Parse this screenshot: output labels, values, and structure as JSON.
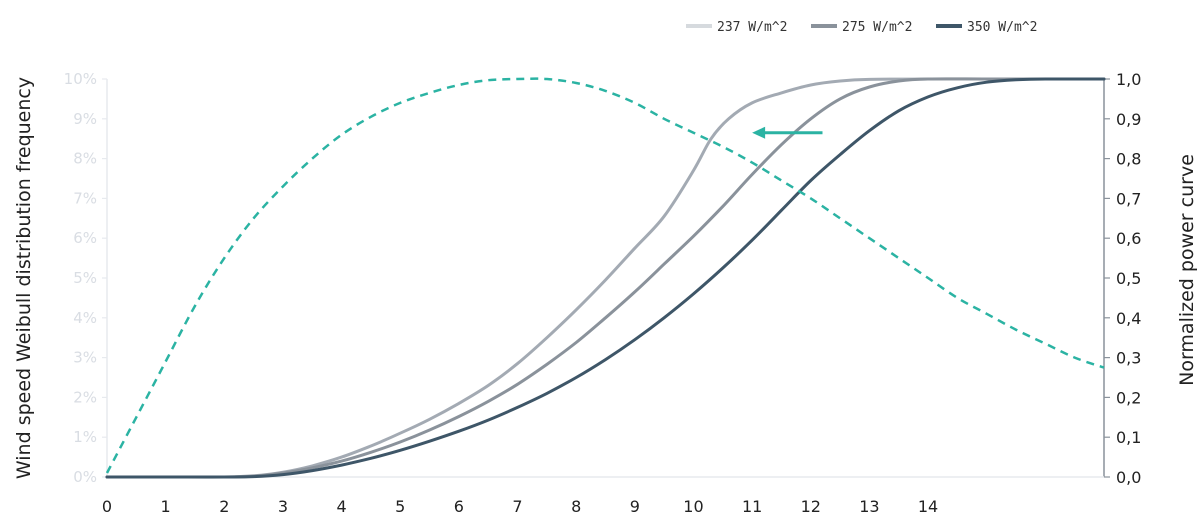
{
  "chart_data": {
    "type": "line",
    "left_axis": {
      "label": "Wind speed Weibull distribution frequency",
      "ticks": [
        "0%",
        "1%",
        "2%",
        "3%",
        "4%",
        "5%",
        "6%",
        "7%",
        "8%",
        "9%",
        "10%"
      ],
      "range": [
        0,
        10
      ]
    },
    "right_axis": {
      "label": "Normalized power curve",
      "ticks": [
        "0,0",
        "0,1",
        "0,2",
        "0,3",
        "0,4",
        "0,5",
        "0,6",
        "0,7",
        "0,8",
        "0,9",
        "1,0"
      ],
      "range": [
        0,
        1
      ]
    },
    "x_axis": {
      "ticks": [
        "0",
        "1",
        "2",
        "3",
        "4",
        "5",
        "6",
        "7",
        "8",
        "9",
        "10",
        "11",
        "12",
        "13",
        "14"
      ],
      "range": [
        0,
        17
      ]
    },
    "legend": {
      "position": "top-right",
      "entries": [
        "237 W/m^2",
        "275 W/m^2",
        "350 W/m^2"
      ]
    },
    "weibull_series": {
      "color": "#2bb3a3",
      "style": "dashed",
      "axis": "left",
      "x": [
        0,
        0.5,
        1,
        1.5,
        2,
        2.5,
        3,
        3.5,
        4,
        4.5,
        5,
        5.5,
        6,
        6.5,
        7,
        7.5,
        8,
        8.5,
        9,
        9.5,
        10,
        10.5,
        11,
        11.5,
        12,
        12.5,
        13,
        13.5,
        14,
        14.5,
        15,
        15.5,
        16,
        16.5,
        17
      ],
      "values": [
        0.1,
        1.5,
        2.9,
        4.3,
        5.5,
        6.5,
        7.3,
        8.0,
        8.6,
        9.05,
        9.4,
        9.65,
        9.85,
        9.97,
        10.0,
        10.0,
        9.9,
        9.7,
        9.4,
        9.0,
        8.65,
        8.3,
        7.9,
        7.45,
        7.0,
        6.5,
        6.0,
        5.5,
        5.0,
        4.5,
        4.1,
        3.7,
        3.35,
        3.0,
        2.75
      ]
    },
    "power_series": [
      {
        "name": "237 W/m^2",
        "color": "#a3aab3",
        "axis": "right",
        "x": [
          0,
          1,
          2,
          2.5,
          3,
          3.5,
          4,
          4.5,
          5,
          5.5,
          6,
          6.5,
          7,
          7.5,
          8,
          8.5,
          9,
          9.5,
          10,
          10.3,
          10.6,
          11,
          11.5,
          12,
          12.5,
          13,
          14,
          15,
          16,
          17
        ],
        "values": [
          0,
          0,
          0,
          0.003,
          0.012,
          0.028,
          0.05,
          0.078,
          0.11,
          0.145,
          0.185,
          0.23,
          0.285,
          0.35,
          0.42,
          0.495,
          0.575,
          0.655,
          0.77,
          0.85,
          0.9,
          0.94,
          0.965,
          0.985,
          0.995,
          0.999,
          1.0,
          1.0,
          1.0,
          1.0
        ]
      },
      {
        "name": "275 W/m^2",
        "color": "#8a929b",
        "axis": "right",
        "x": [
          0,
          1,
          2,
          2.5,
          3,
          3.5,
          4,
          4.5,
          5,
          5.5,
          6,
          6.5,
          7,
          7.5,
          8,
          8.5,
          9,
          9.5,
          10,
          10.5,
          11,
          11.5,
          12,
          12.5,
          13,
          13.5,
          14,
          15,
          16,
          17
        ],
        "values": [
          0,
          0,
          0,
          0.002,
          0.01,
          0.023,
          0.04,
          0.062,
          0.088,
          0.118,
          0.152,
          0.19,
          0.233,
          0.283,
          0.338,
          0.4,
          0.465,
          0.535,
          0.605,
          0.68,
          0.76,
          0.835,
          0.9,
          0.95,
          0.98,
          0.995,
          1.0,
          1.0,
          1.0,
          1.0
        ]
      },
      {
        "name": "350 W/m^2",
        "color": "#3e5668",
        "axis": "right",
        "x": [
          0,
          1,
          2,
          2.5,
          3,
          3.5,
          4,
          4.5,
          5,
          5.5,
          6,
          6.5,
          7,
          7.5,
          8,
          8.5,
          9,
          9.5,
          10,
          10.5,
          11,
          11.5,
          12,
          12.5,
          13,
          13.5,
          14,
          14.5,
          15,
          15.5,
          16,
          17
        ],
        "values": [
          0,
          0,
          0,
          0.001,
          0.006,
          0.016,
          0.03,
          0.047,
          0.067,
          0.09,
          0.115,
          0.143,
          0.175,
          0.21,
          0.25,
          0.295,
          0.345,
          0.4,
          0.46,
          0.525,
          0.595,
          0.67,
          0.745,
          0.81,
          0.87,
          0.92,
          0.955,
          0.978,
          0.992,
          0.998,
          1.0,
          1.0
        ]
      }
    ],
    "annotation": {
      "type": "arrow",
      "direction": "left",
      "color": "#2bb3a3",
      "x_from": 12.2,
      "x_to": 11,
      "y": 0.865
    }
  }
}
